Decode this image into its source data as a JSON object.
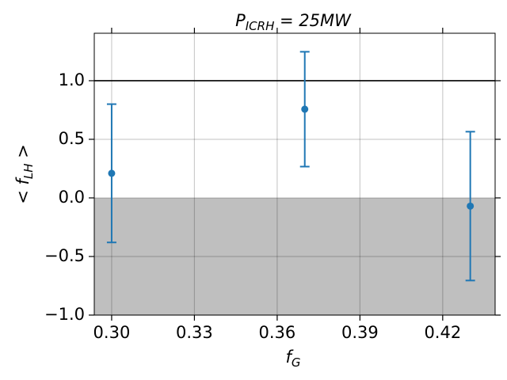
{
  "chart_data": {
    "type": "errorbar",
    "title": {
      "main": "P",
      "sub": "ICRH",
      "rest": " = 25MW"
    },
    "x_label": {
      "main": "f",
      "sub": "G"
    },
    "y_label": {
      "main": "< f",
      "sub": "LH",
      "rest": " >"
    },
    "series": [
      {
        "color": "#1f77b4",
        "x": [
          0.3,
          0.37,
          0.43
        ],
        "values": [
          0.21,
          0.757,
          -0.07
        ],
        "errors": [
          0.59,
          0.49,
          0.635
        ]
      }
    ],
    "xlim": [
      0.2937,
      0.439
    ],
    "ylim": [
      -1.0,
      1.405
    ],
    "xticks": [
      {
        "value": 0.3,
        "label": "0.30"
      },
      {
        "value": 0.33,
        "label": "0.33"
      },
      {
        "value": 0.36,
        "label": "0.36"
      },
      {
        "value": 0.39,
        "label": "0.39"
      },
      {
        "value": 0.42,
        "label": "0.42"
      }
    ],
    "yticks": [
      {
        "value": -1.0,
        "label": "−1.0"
      },
      {
        "value": -0.5,
        "label": "−0.5"
      },
      {
        "value": 0.0,
        "label": "0.0"
      },
      {
        "value": 0.5,
        "label": "0.5"
      },
      {
        "value": 1.0,
        "label": "1.0"
      }
    ],
    "grid": true,
    "hline": {
      "value": 1.0,
      "color": "#000000"
    },
    "shade": {
      "from": -1.0,
      "to": 0.0,
      "color": "#bfbfbf"
    }
  }
}
